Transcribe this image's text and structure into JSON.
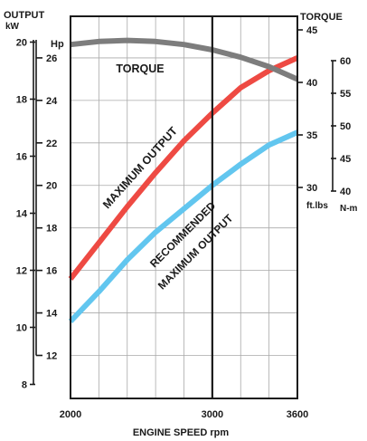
{
  "chart_data": {
    "type": "line",
    "axis_titles": {
      "output_title": "OUTPUT",
      "output_kw_unit": "kW",
      "output_hp_unit": "Hp",
      "torque_title": "TORQUE",
      "torque_ftlbs_unit": "ft.lbs",
      "torque_nm_unit": "N-m",
      "xlabel": "ENGINE SPEED rpm"
    },
    "x_axis": {
      "ticks": [
        2000,
        3000,
        3600
      ],
      "xlim": [
        2000,
        3600
      ],
      "marker_line_at": 3000
    },
    "hp_axis": {
      "ylim": [
        10.5,
        26.7
      ],
      "ticks": [
        12,
        14,
        16,
        18,
        20,
        22,
        24,
        26
      ]
    },
    "kw_axis": {
      "ticks": [
        8,
        10,
        12,
        14,
        16,
        18,
        20
      ]
    },
    "ftlbs_axis": {
      "ticks": [
        30,
        35,
        40,
        45
      ]
    },
    "nm_axis": {
      "ticks": [
        40,
        45,
        50,
        55,
        60
      ]
    },
    "series": [
      {
        "name": "MAXIMUM OUTPUT",
        "axis": "hp",
        "color": "#ee4a43",
        "x": [
          2000,
          2200,
          2400,
          2600,
          2800,
          3000,
          3200,
          3400,
          3600
        ],
        "y": [
          15.6,
          17.3,
          19.0,
          20.6,
          22.1,
          23.4,
          24.6,
          25.4,
          26.0
        ]
      },
      {
        "name": "RECOMMENDED MAXIMUM OUTPUT",
        "axis": "hp",
        "color": "#62c6ef",
        "x": [
          2000,
          2200,
          2400,
          2600,
          2800,
          3000,
          3200,
          3400,
          3600
        ],
        "y": [
          13.6,
          15.0,
          16.5,
          17.8,
          18.9,
          20.0,
          21.0,
          21.9,
          22.5
        ]
      },
      {
        "name": "TORQUE",
        "axis": "ftlbs",
        "color": "#7d7d7d",
        "x": [
          2000,
          2200,
          2400,
          2600,
          2800,
          3000,
          3200,
          3400,
          3600
        ],
        "y": [
          43.6,
          43.9,
          44.0,
          43.9,
          43.6,
          43.1,
          42.4,
          41.5,
          40.3
        ]
      }
    ],
    "annotations": [
      {
        "id": "torque",
        "text": "TORQUE"
      },
      {
        "id": "max",
        "text": "MAXIMUM OUTPUT"
      },
      {
        "id": "rec1",
        "text": "RECOMMENDED"
      },
      {
        "id": "rec2",
        "text": "MAXIMUM OUTPUT"
      }
    ],
    "grid": true,
    "legend": "none"
  }
}
